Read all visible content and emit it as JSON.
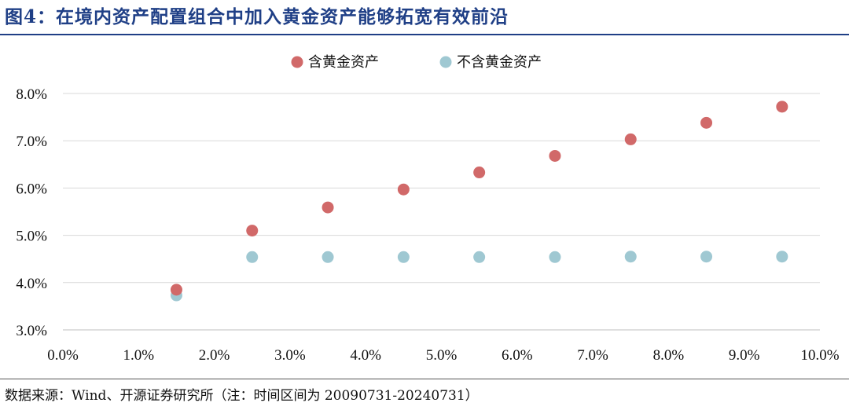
{
  "figure": {
    "title": "图4：在境内资产配置组合中加入黄金资产能够拓宽有效前沿",
    "source": "数据来源：Wind、开源证券研究所（注：时间区间为 20090731-20240731）"
  },
  "colors": {
    "title": "#1f3f86",
    "with_gold": "#d16969",
    "without_gold": "#9fc8d2"
  },
  "chart_data": {
    "type": "scatter",
    "title": "",
    "xlabel": "",
    "ylabel": "",
    "xlim": [
      0.0,
      10.0
    ],
    "ylim": [
      3.0,
      8.0
    ],
    "x_ticks": [
      "0.0%",
      "1.0%",
      "2.0%",
      "3.0%",
      "4.0%",
      "5.0%",
      "6.0%",
      "7.0%",
      "8.0%",
      "9.0%",
      "10.0%"
    ],
    "y_ticks": [
      "3.0%",
      "4.0%",
      "5.0%",
      "6.0%",
      "7.0%",
      "8.0%"
    ],
    "grid": "horizontal",
    "legend_position": "top",
    "series": [
      {
        "name": "含黄金资产",
        "color": "#d16969",
        "x": [
          1.5,
          2.5,
          3.5,
          4.5,
          5.5,
          6.5,
          7.5,
          8.5,
          9.5
        ],
        "y": [
          3.85,
          5.1,
          5.59,
          5.97,
          6.33,
          6.68,
          7.03,
          7.38,
          7.72
        ]
      },
      {
        "name": "不含黄金资产",
        "color": "#9fc8d2",
        "x": [
          1.5,
          2.5,
          3.5,
          4.5,
          5.5,
          6.5,
          7.5,
          8.5,
          9.5
        ],
        "y": [
          3.73,
          4.54,
          4.54,
          4.54,
          4.54,
          4.54,
          4.55,
          4.55,
          4.55
        ]
      }
    ]
  }
}
